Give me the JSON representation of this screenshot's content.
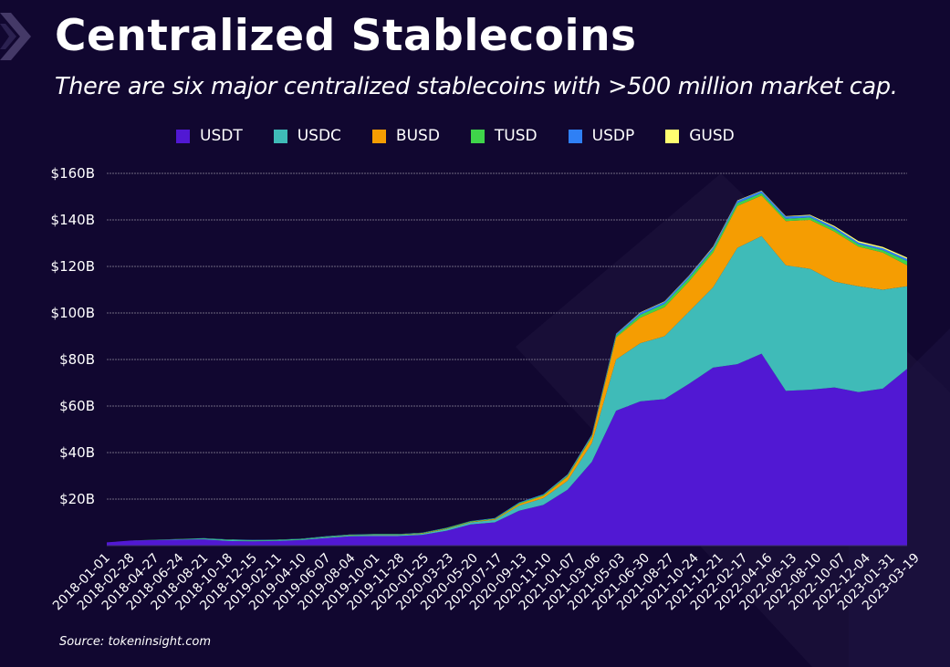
{
  "header": {
    "title": "Centralized Stablecoins",
    "subtitle": "There are six major centralized stablecoins with >500 million market cap."
  },
  "source": "Source: tokeninsight.com",
  "colors": {
    "background": "#110730",
    "gridline": "#6e6880",
    "USDT": "#5118d3",
    "USDC": "#3fbbb8",
    "BUSD": "#f59d02",
    "TUSD": "#3fd44a",
    "USDP": "#2f80f5",
    "GUSD": "#ffff70"
  },
  "chart_data": {
    "type": "area",
    "stacked": true,
    "title": "Centralized Stablecoins",
    "subtitle": "There are six major centralized stablecoins with >500 million market cap.",
    "xlabel": "",
    "ylabel": "",
    "ylim": [
      0,
      160
    ],
    "y_unit": "USD billions",
    "yticks": [
      20,
      40,
      60,
      80,
      100,
      120,
      140,
      160
    ],
    "ytick_labels": [
      "$20B",
      "$40B",
      "$60B",
      "$80B",
      "$100B",
      "$120B",
      "$140B",
      "$160B"
    ],
    "grid": true,
    "legend_position": "top",
    "legend": [
      "USDT",
      "USDC",
      "BUSD",
      "TUSD",
      "USDP",
      "GUSD"
    ],
    "x_tick_labels": [
      "2018-01-01",
      "2018-02-28",
      "2018-04-27",
      "2018-06-24",
      "2018-08-21",
      "2018-10-18",
      "2018-12-15",
      "2019-02-11",
      "2019-04-10",
      "2019-06-07",
      "2019-08-04",
      "2019-10-01",
      "2019-11-28",
      "2020-01-25",
      "2020-03-23",
      "2020-05-20",
      "2020-07-17",
      "2020-09-13",
      "2020-11-10",
      "2021-01-07",
      "2021-03-06",
      "2021-05-03",
      "2021-06-30",
      "2021-08-27",
      "2021-10-24",
      "2021-12-21",
      "2022-02-17",
      "2022-04-16",
      "2022-06-13",
      "2022-08-10",
      "2022-10-07",
      "2022-12-04",
      "2023-01-31",
      "2023-03-19"
    ],
    "x": [
      "2018-01-01",
      "2018-02-28",
      "2018-04-27",
      "2018-06-24",
      "2018-08-21",
      "2018-10-18",
      "2018-12-15",
      "2019-02-11",
      "2019-04-10",
      "2019-06-07",
      "2019-08-04",
      "2019-10-01",
      "2019-11-28",
      "2020-01-25",
      "2020-03-23",
      "2020-05-20",
      "2020-07-17",
      "2020-09-13",
      "2020-11-10",
      "2021-01-07",
      "2021-03-06",
      "2021-05-03",
      "2021-06-30",
      "2021-08-27",
      "2021-10-24",
      "2021-12-21",
      "2022-02-17",
      "2022-04-16",
      "2022-06-13",
      "2022-08-10",
      "2022-10-07",
      "2022-12-04",
      "2023-01-31",
      "2023-03-19"
    ],
    "series": [
      {
        "name": "USDT",
        "values": [
          1.4,
          2.2,
          2.4,
          2.6,
          2.7,
          2.0,
          1.9,
          2.0,
          2.4,
          3.2,
          4.0,
          4.1,
          4.1,
          4.6,
          6.4,
          9.1,
          10.0,
          15.0,
          17.5,
          24.0,
          36.0,
          58.0,
          62.0,
          63.0,
          69.5,
          76.5,
          78.0,
          82.5,
          66.5,
          67.0,
          68.0,
          66.0,
          67.5,
          76.0
        ]
      },
      {
        "name": "USDC",
        "values": [
          0.0,
          0.0,
          0.1,
          0.2,
          0.3,
          0.4,
          0.3,
          0.3,
          0.3,
          0.4,
          0.4,
          0.5,
          0.5,
          0.5,
          0.7,
          0.9,
          1.1,
          2.2,
          2.9,
          3.9,
          8.0,
          22.0,
          25.0,
          27.0,
          31.0,
          34.5,
          50.0,
          50.5,
          54.0,
          52.0,
          45.5,
          45.5,
          42.5,
          35.5
        ]
      },
      {
        "name": "BUSD",
        "values": [
          0.0,
          0.0,
          0.0,
          0.0,
          0.0,
          0.0,
          0.0,
          0.0,
          0.0,
          0.1,
          0.1,
          0.1,
          0.1,
          0.2,
          0.2,
          0.2,
          0.3,
          0.7,
          1.0,
          1.7,
          2.5,
          9.5,
          11.0,
          12.5,
          13.0,
          15.0,
          18.0,
          17.5,
          19.0,
          21.0,
          21.5,
          17.0,
          16.0,
          9.0
        ]
      },
      {
        "name": "TUSD",
        "values": [
          0.0,
          0.0,
          0.05,
          0.1,
          0.15,
          0.2,
          0.2,
          0.2,
          0.2,
          0.2,
          0.2,
          0.2,
          0.2,
          0.2,
          0.3,
          0.3,
          0.3,
          0.4,
          0.4,
          0.5,
          0.6,
          0.8,
          1.2,
          1.4,
          1.4,
          1.3,
          1.2,
          1.0,
          1.0,
          1.0,
          1.0,
          1.0,
          1.0,
          1.8
        ]
      },
      {
        "name": "USDP",
        "values": [
          0.0,
          0.0,
          0.0,
          0.0,
          0.05,
          0.1,
          0.1,
          0.1,
          0.1,
          0.1,
          0.1,
          0.1,
          0.1,
          0.1,
          0.1,
          0.1,
          0.2,
          0.3,
          0.3,
          0.4,
          0.5,
          0.7,
          0.9,
          0.9,
          0.9,
          0.9,
          1.0,
          0.9,
          0.9,
          0.9,
          0.9,
          0.8,
          0.8,
          0.9
        ]
      },
      {
        "name": "GUSD",
        "values": [
          0.0,
          0.0,
          0.0,
          0.0,
          0.0,
          0.0,
          0.0,
          0.0,
          0.0,
          0.0,
          0.0,
          0.0,
          0.0,
          0.0,
          0.0,
          0.0,
          0.0,
          0.0,
          0.0,
          0.1,
          0.1,
          0.1,
          0.2,
          0.2,
          0.2,
          0.3,
          0.2,
          0.2,
          0.2,
          0.3,
          0.5,
          0.6,
          0.6,
          0.6
        ]
      }
    ]
  }
}
